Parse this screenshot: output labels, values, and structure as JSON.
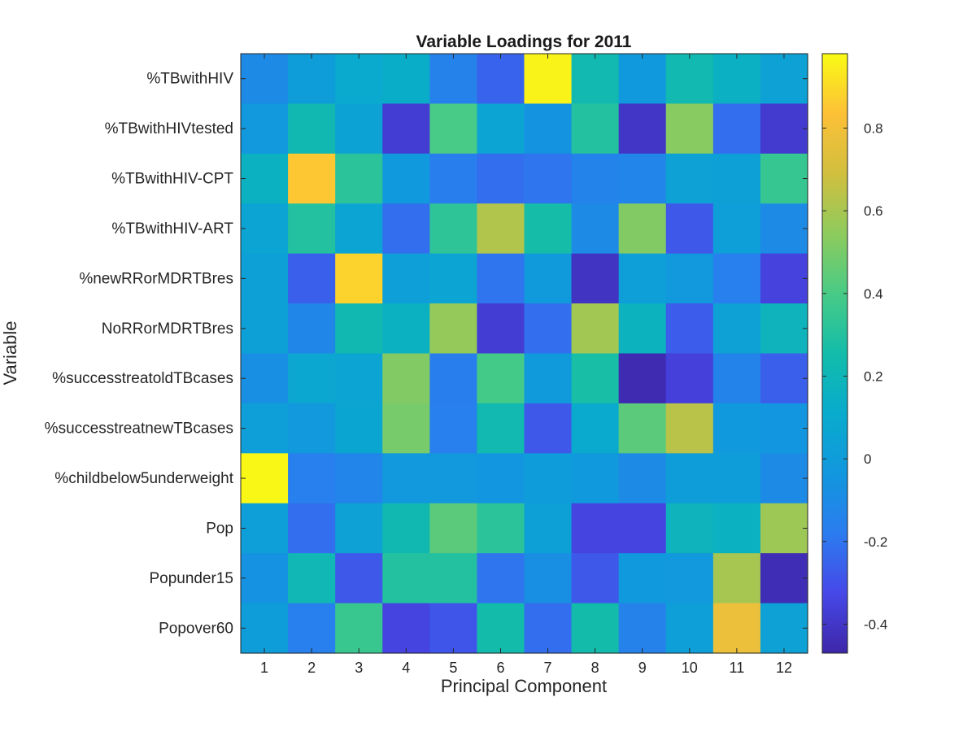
{
  "chart_data": {
    "type": "heatmap",
    "title": "Variable Loadings for 2011",
    "xlabel": "Principal Component",
    "ylabel": "Variable",
    "x_categories": [
      "1",
      "2",
      "3",
      "4",
      "5",
      "6",
      "7",
      "8",
      "9",
      "10",
      "11",
      "12"
    ],
    "y_categories": [
      "%TBwithHIV",
      "%TBwithHIVtested",
      "%TBwithHIV-CPT",
      "%TBwithHIV-ART",
      "%newRRorMDRTBres",
      "NoRRorMDRTBres",
      "%successtreatoldTBcases",
      "%successtreatnewTBcases",
      "%childbelow5underweight",
      "Pop",
      "Popunder15",
      "Popover60"
    ],
    "values": [
      [
        -0.1,
        0.01,
        0.1,
        0.13,
        -0.15,
        -0.25,
        0.96,
        0.23,
        -0.02,
        0.23,
        0.15,
        0.04
      ],
      [
        -0.03,
        0.22,
        0.05,
        -0.37,
        0.4,
        0.06,
        -0.05,
        0.3,
        -0.4,
        0.53,
        -0.22,
        -0.38
      ],
      [
        0.16,
        0.85,
        0.32,
        -0.02,
        -0.17,
        -0.22,
        -0.2,
        -0.14,
        -0.13,
        0.04,
        0.03,
        0.35
      ],
      [
        0.06,
        0.3,
        0.06,
        -0.22,
        0.33,
        0.62,
        0.26,
        -0.1,
        0.52,
        -0.28,
        0.02,
        -0.1
      ],
      [
        0.03,
        -0.26,
        0.88,
        0.02,
        0.06,
        -0.2,
        -0.01,
        -0.41,
        0.02,
        -0.03,
        -0.16,
        -0.35
      ],
      [
        0.03,
        -0.12,
        0.22,
        0.16,
        0.56,
        -0.37,
        -0.22,
        0.59,
        0.17,
        -0.27,
        0.04,
        0.18
      ],
      [
        -0.08,
        0.08,
        0.06,
        0.52,
        -0.17,
        0.39,
        -0.01,
        0.27,
        -0.45,
        -0.36,
        -0.14,
        -0.26
      ],
      [
        0.02,
        -0.03,
        0.07,
        0.5,
        -0.16,
        0.23,
        -0.28,
        0.1,
        0.44,
        0.64,
        -0.02,
        -0.04
      ],
      [
        0.97,
        -0.16,
        -0.13,
        -0.03,
        -0.03,
        -0.04,
        0.0,
        -0.02,
        -0.1,
        0.01,
        0.01,
        -0.1
      ],
      [
        0.02,
        -0.22,
        0.04,
        0.22,
        0.44,
        0.32,
        0.03,
        -0.34,
        -0.34,
        0.18,
        0.16,
        0.58
      ],
      [
        -0.06,
        0.21,
        -0.28,
        0.3,
        0.3,
        -0.2,
        -0.08,
        -0.28,
        -0.02,
        -0.03,
        0.6,
        -0.44
      ],
      [
        0.01,
        -0.16,
        0.36,
        -0.34,
        -0.29,
        0.25,
        -0.22,
        0.25,
        -0.15,
        0.02,
        0.78,
        0.04
      ]
    ],
    "colormap": "parula",
    "clim": [
      -0.47,
      0.98
    ],
    "colorbar_ticks": [
      0.8,
      0.6,
      0.4,
      0.2,
      0,
      -0.2,
      -0.4
    ],
    "colorbar_tick_labels": [
      "0.8",
      "0.6",
      "0.4",
      "0.2",
      "0",
      "-0.2",
      "-0.4"
    ],
    "grid": false,
    "colorbar_position": "right"
  }
}
